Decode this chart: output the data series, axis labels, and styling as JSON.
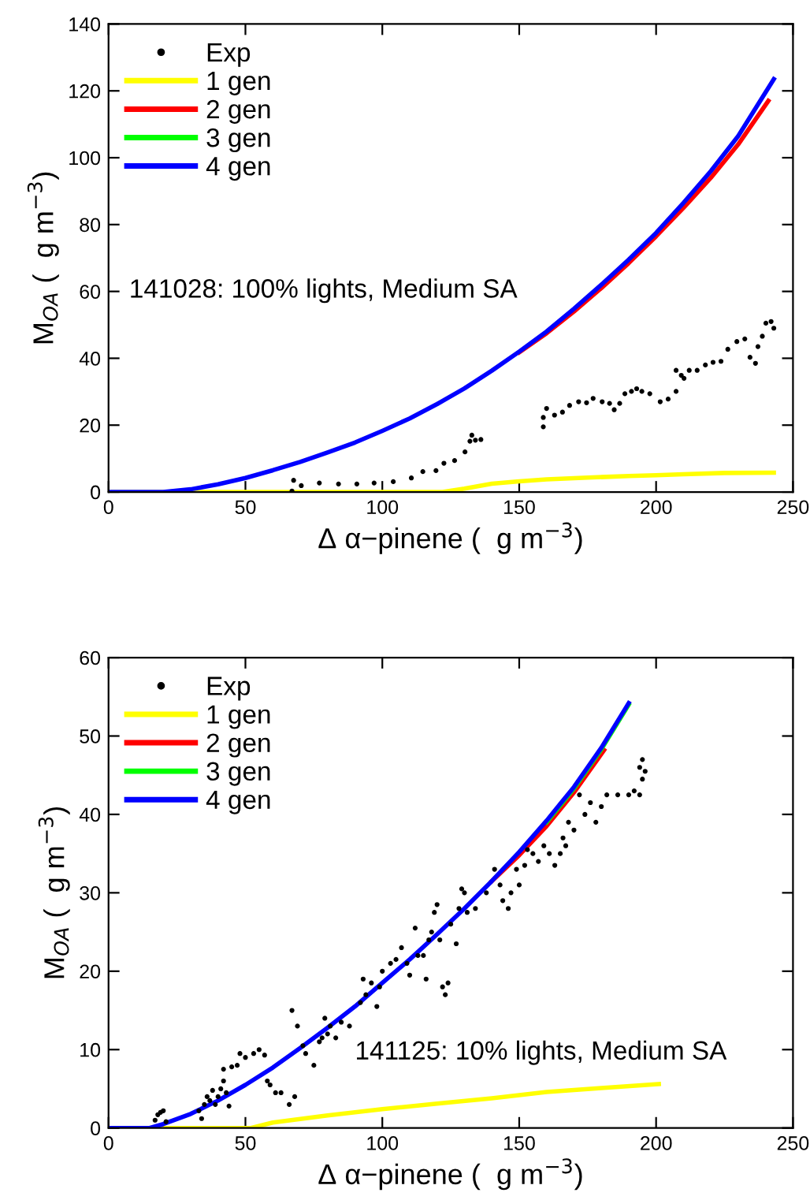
{
  "chart_data": [
    {
      "type": "line",
      "xlabel": "Δ α−pinene (  g m$^{−3}$)",
      "ylabel": "M$_{OA}$ (  g m$^{−3}$)",
      "annotations": [
        "141028: 100% lights, Medium SA"
      ],
      "xlim": [
        0,
        250
      ],
      "ylim": [
        0,
        140
      ],
      "xticks": [
        0,
        50,
        100,
        150,
        200,
        250
      ],
      "yticks": [
        0,
        20,
        40,
        60,
        80,
        100,
        120,
        140
      ],
      "grid": false,
      "legend": "top left",
      "series": [
        {
          "name": "Exp",
          "type": "scatter",
          "marker": "circle",
          "color": "#000000",
          "x": [
            67,
            67.6,
            70.4,
            77,
            84,
            90.7,
            97,
            104,
            110.6,
            114.8,
            119.6,
            122.5,
            126.4,
            130.2,
            132,
            132.7,
            134,
            136,
            158.8,
            158.8,
            160,
            162.9,
            165.8,
            168.4,
            171.7,
            174.6,
            177,
            180.3,
            183,
            184.7,
            186.7,
            188.6,
            191,
            192.9,
            194.8,
            197.7,
            201.5,
            204.4,
            207.3,
            207.3,
            209.2,
            210.2,
            212.1,
            215,
            218,
            220.8,
            223.7,
            226.2,
            229.5,
            232.4,
            234.3,
            236.3,
            237.2,
            238.8,
            240.1,
            242,
            243
          ],
          "values": [
            0.3,
            3.5,
            1.9,
            2.7,
            2.4,
            2.4,
            2.7,
            3.1,
            4.2,
            6.1,
            6.4,
            8.6,
            9.4,
            12,
            15.2,
            17,
            15.5,
            15.7,
            19.5,
            22.3,
            25,
            23,
            23.9,
            25.9,
            27,
            26.7,
            28,
            27,
            26.5,
            24.6,
            26.5,
            29.4,
            30.1,
            30.9,
            30.1,
            29.4,
            27,
            27.8,
            30.1,
            36.4,
            34.9,
            34,
            36.4,
            36.4,
            38,
            38.8,
            39.1,
            42.7,
            45,
            45.8,
            40.3,
            38.5,
            43.5,
            46.6,
            50.5,
            51,
            49
          ]
        },
        {
          "name": "1 gen",
          "color": "#ffff00",
          "x": [
            0,
            122,
            130,
            140,
            150,
            160,
            175,
            190,
            200,
            210,
            225,
            243
          ],
          "values": [
            0,
            0,
            1,
            2.5,
            3.2,
            3.8,
            4.3,
            4.8,
            5,
            5.3,
            5.7,
            5.8
          ]
        },
        {
          "name": "2 gen",
          "color": "#ff0000",
          "x": [
            150,
            160,
            170,
            180,
            190,
            200,
            210,
            220,
            230,
            241
          ],
          "values": [
            41.8,
            47.5,
            54,
            61,
            68.5,
            76.5,
            85,
            94,
            104,
            117
          ]
        },
        {
          "name": "3 gen",
          "color": "#00ff00"
        },
        {
          "name": "4 gen",
          "color": "#0000ff",
          "x": [
            0,
            20,
            30,
            40,
            50,
            60,
            70,
            80,
            90,
            100,
            110,
            120,
            130,
            140,
            150,
            160,
            170,
            180,
            190,
            200,
            210,
            220,
            230,
            243
          ],
          "values": [
            0,
            0,
            0.8,
            2.3,
            4.2,
            6.5,
            9,
            11.8,
            14.8,
            18.3,
            22,
            26.3,
            31,
            36.3,
            42,
            48,
            54.8,
            62,
            69.5,
            77.5,
            86.5,
            96,
            106.5,
            123.5
          ]
        }
      ]
    },
    {
      "type": "line",
      "xlabel": "Δ α−pinene (  g m$^{−3}$)",
      "ylabel": "M$_{OA}$ (  g m$^{−3}$)",
      "annotations": [
        "141125: 10% lights, Medium SA"
      ],
      "xlim": [
        0,
        250
      ],
      "ylim": [
        0,
        60
      ],
      "xticks": [
        0,
        50,
        100,
        150,
        200,
        250
      ],
      "yticks": [
        0,
        10,
        20,
        30,
        40,
        50,
        60
      ],
      "grid": false,
      "legend": "top left",
      "series": [
        {
          "name": "Exp",
          "type": "scatter",
          "marker": "circle",
          "color": "#000000",
          "x": [
            17,
            18,
            19,
            20,
            21,
            33,
            34,
            35,
            36,
            37,
            38,
            39,
            40,
            41,
            42,
            42,
            43,
            44,
            45,
            47,
            48,
            50,
            53,
            55,
            57,
            58,
            59,
            61,
            63,
            66,
            67,
            68,
            69,
            71,
            72,
            75,
            77,
            78,
            79,
            80,
            81,
            83,
            85,
            88,
            92,
            93,
            94,
            96,
            98,
            99,
            100,
            103,
            105,
            107,
            109,
            110,
            112,
            113,
            115,
            116,
            117,
            118,
            119,
            120,
            121,
            122,
            123,
            124,
            125,
            127,
            128,
            129,
            130,
            131,
            134,
            138,
            141,
            143,
            144,
            146,
            147,
            149,
            150,
            152,
            153,
            155,
            157,
            159,
            161,
            163,
            165,
            166,
            167,
            168,
            170,
            172,
            174,
            176,
            178,
            180,
            182,
            186,
            190,
            192,
            194,
            194,
            195,
            195,
            196
          ],
          "values": [
            1,
            1.7,
            2,
            2.2,
            0.8,
            2.2,
            1.2,
            3,
            4,
            3.5,
            4.8,
            3,
            4,
            5,
            6,
            7.5,
            4.5,
            2.8,
            7.8,
            8,
            9.5,
            9,
            9.5,
            10,
            9.3,
            6,
            5.5,
            4.5,
            4.5,
            3,
            15,
            4,
            13,
            10.5,
            9.5,
            8,
            11,
            11.5,
            14,
            12,
            13,
            11.5,
            13.5,
            13,
            16,
            19,
            17,
            18.5,
            15.5,
            18,
            20,
            21,
            21.5,
            23,
            21,
            19.5,
            25.5,
            22,
            22,
            19,
            24,
            25,
            27.5,
            28.5,
            24,
            18,
            17,
            18.5,
            26,
            23.5,
            28,
            30.5,
            30,
            27.5,
            28,
            30,
            33,
            31,
            29,
            28,
            30,
            33,
            31,
            33.5,
            35.5,
            35,
            34,
            36,
            35,
            33.5,
            35,
            37,
            36,
            39,
            38,
            42.5,
            40,
            41.5,
            39,
            41,
            42.5,
            42.5,
            42.5,
            43,
            42.5,
            46,
            47,
            44.5,
            45.5
          ]
        },
        {
          "name": "1 gen",
          "color": "#ffff00",
          "x": [
            0,
            52,
            60,
            80,
            100,
            120,
            140,
            160,
            180,
            201
          ],
          "values": [
            0,
            0,
            0.7,
            1.6,
            2.4,
            3.1,
            3.8,
            4.6,
            5.1,
            5.6
          ]
        },
        {
          "name": "2 gen",
          "color": "#ff0000",
          "x": [
            140,
            150,
            160,
            170,
            181
          ],
          "values": [
            31.5,
            34.8,
            38.5,
            42.8,
            48.2
          ]
        },
        {
          "name": "3 gen",
          "color": "#00ff00",
          "x": [
            160,
            170,
            180,
            190
          ],
          "values": [
            39,
            43.3,
            48.3,
            54
          ]
        },
        {
          "name": "4 gen",
          "color": "#0000ff",
          "x": [
            0,
            15,
            20,
            30,
            40,
            50,
            60,
            70,
            80,
            90,
            100,
            110,
            120,
            130,
            140,
            150,
            160,
            170,
            180,
            190
          ],
          "values": [
            0,
            0,
            0.5,
            1.8,
            3.5,
            5.5,
            7.7,
            10.2,
            12.8,
            15.5,
            18.5,
            21.5,
            24.7,
            28,
            31.5,
            35.2,
            39.2,
            43.5,
            48.5,
            54.2
          ]
        }
      ]
    }
  ]
}
